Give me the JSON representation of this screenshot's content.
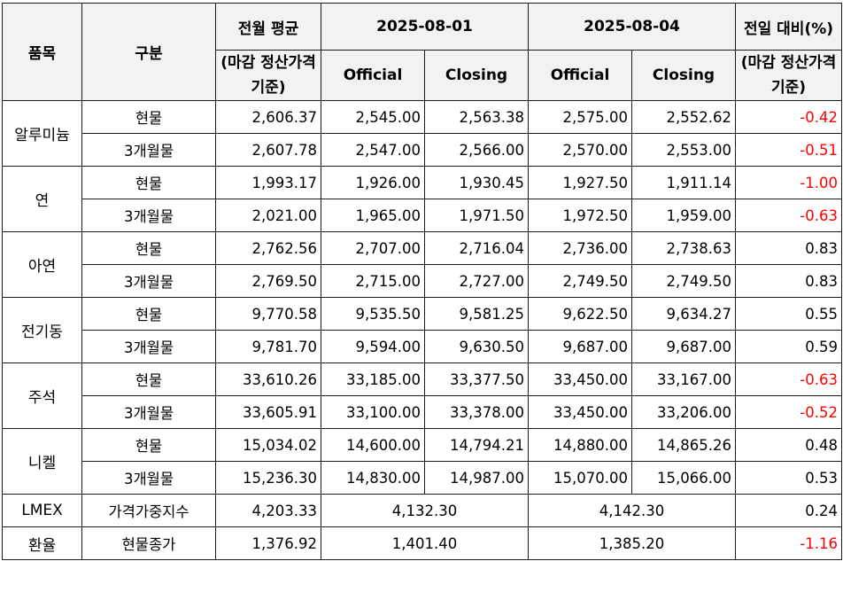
{
  "header": {
    "item": "품목",
    "category": "구분",
    "prev_month_avg": "전월 평균",
    "date1": "2025-08-01",
    "date2": "2025-08-04",
    "change": "전일 대비(%)",
    "basis_left": "(마감 정산가격 기준)",
    "official": "Official",
    "closing": "Closing",
    "basis_right": "(마감 정산가격 기준)"
  },
  "metals": [
    {
      "name": "알루미늄",
      "rows": [
        {
          "type": "현물",
          "avg": "2,606.37",
          "d1o": "2,545.00",
          "d1c": "2,563.38",
          "d2o": "2,575.00",
          "d2c": "2,552.62",
          "chg": "-0.42",
          "neg": true
        },
        {
          "type": "3개월물",
          "avg": "2,607.78",
          "d1o": "2,547.00",
          "d1c": "2,566.00",
          "d2o": "2,570.00",
          "d2c": "2,553.00",
          "chg": "-0.51",
          "neg": true
        }
      ]
    },
    {
      "name": "연",
      "rows": [
        {
          "type": "현물",
          "avg": "1,993.17",
          "d1o": "1,926.00",
          "d1c": "1,930.45",
          "d2o": "1,927.50",
          "d2c": "1,911.14",
          "chg": "-1.00",
          "neg": true
        },
        {
          "type": "3개월물",
          "avg": "2,021.00",
          "d1o": "1,965.00",
          "d1c": "1,971.50",
          "d2o": "1,972.50",
          "d2c": "1,959.00",
          "chg": "-0.63",
          "neg": true
        }
      ]
    },
    {
      "name": "아연",
      "rows": [
        {
          "type": "현물",
          "avg": "2,762.56",
          "d1o": "2,707.00",
          "d1c": "2,716.04",
          "d2o": "2,736.00",
          "d2c": "2,738.63",
          "chg": "0.83",
          "neg": false
        },
        {
          "type": "3개월물",
          "avg": "2,769.50",
          "d1o": "2,715.00",
          "d1c": "2,727.00",
          "d2o": "2,749.50",
          "d2c": "2,749.50",
          "chg": "0.83",
          "neg": false
        }
      ]
    },
    {
      "name": "전기동",
      "rows": [
        {
          "type": "현물",
          "avg": "9,770.58",
          "d1o": "9,535.50",
          "d1c": "9,581.25",
          "d2o": "9,622.50",
          "d2c": "9,634.27",
          "chg": "0.55",
          "neg": false
        },
        {
          "type": "3개월물",
          "avg": "9,781.70",
          "d1o": "9,594.00",
          "d1c": "9,630.50",
          "d2o": "9,687.00",
          "d2c": "9,687.00",
          "chg": "0.59",
          "neg": false
        }
      ]
    },
    {
      "name": "주석",
      "rows": [
        {
          "type": "현물",
          "avg": "33,610.26",
          "d1o": "33,185.00",
          "d1c": "33,377.50",
          "d2o": "33,450.00",
          "d2c": "33,167.00",
          "chg": "-0.63",
          "neg": true
        },
        {
          "type": "3개월물",
          "avg": "33,605.91",
          "d1o": "33,100.00",
          "d1c": "33,378.00",
          "d2o": "33,450.00",
          "d2c": "33,206.00",
          "chg": "-0.52",
          "neg": true
        }
      ]
    },
    {
      "name": "니켈",
      "rows": [
        {
          "type": "현물",
          "avg": "15,034.02",
          "d1o": "14,600.00",
          "d1c": "14,794.21",
          "d2o": "14,880.00",
          "d2c": "14,865.26",
          "chg": "0.48",
          "neg": false
        },
        {
          "type": "3개월물",
          "avg": "15,236.30",
          "d1o": "14,830.00",
          "d1c": "14,987.00",
          "d2o": "15,070.00",
          "d2c": "15,066.00",
          "chg": "0.53",
          "neg": false
        }
      ]
    }
  ],
  "extras": [
    {
      "name": "LMEX",
      "type": "가격가중지수",
      "avg": "4,203.33",
      "d1": "4,132.30",
      "d2": "4,142.30",
      "chg": "0.24",
      "neg": false
    },
    {
      "name": "환율",
      "type": "현물종가",
      "avg": "1,376.92",
      "d1": "1,401.40",
      "d2": "1,385.20",
      "chg": "-1.16",
      "neg": true
    }
  ]
}
